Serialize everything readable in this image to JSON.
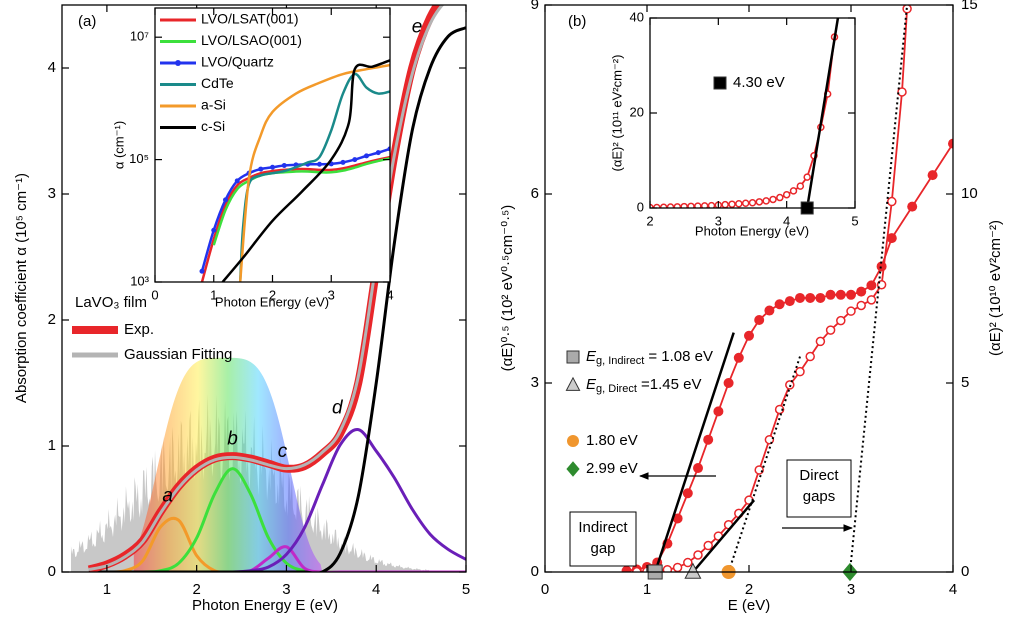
{
  "chart_data": [
    {
      "type": "line",
      "label": "(a)",
      "xlabel": "Photon Energy E  (eV)",
      "ylabel": "Absorption coefficient α  (10⁵ cm⁻¹)",
      "xlim": [
        0.5,
        5
      ],
      "ylim": [
        0,
        4.5
      ],
      "xticks": [
        1,
        2,
        3,
        4,
        5
      ],
      "yticks": [
        0,
        1,
        2,
        3,
        4
      ],
      "legend_title": "LaVO₃ film",
      "x": [
        0.8,
        1.0,
        1.2,
        1.4,
        1.6,
        1.8,
        2.0,
        2.2,
        2.4,
        2.6,
        2.8,
        3.0,
        3.2,
        3.4,
        3.6,
        3.8,
        4.0,
        4.2,
        4.4,
        4.6,
        4.8,
        5.0
      ],
      "series": [
        {
          "name": "Exp.",
          "color": "#e8262a",
          "values": [
            0.02,
            0.06,
            0.13,
            0.25,
            0.48,
            0.68,
            0.82,
            0.9,
            0.92,
            0.9,
            0.86,
            0.82,
            0.84,
            0.94,
            1.1,
            1.5,
            2.4,
            3.3,
            4.0,
            4.4,
            4.6,
            4.7
          ]
        },
        {
          "name": "Gaussian Fitting",
          "color": "#b4b4b4",
          "values": [
            0.02,
            0.05,
            0.12,
            0.24,
            0.47,
            0.67,
            0.81,
            0.89,
            0.91,
            0.89,
            0.85,
            0.82,
            0.85,
            0.95,
            1.12,
            1.55,
            2.45,
            3.3,
            3.95,
            4.35,
            4.55,
            4.65
          ]
        }
      ],
      "peaks": [
        {
          "name": "a",
          "color": "#f39a2a",
          "values": [
            0,
            0,
            0.01,
            0.09,
            0.36,
            0.41,
            0.13,
            0.01,
            0,
            0,
            0,
            0,
            0,
            0,
            0,
            0,
            0,
            0,
            0,
            0,
            0,
            0
          ]
        },
        {
          "name": "b",
          "color": "#3ce03c",
          "values": [
            0,
            0,
            0,
            0,
            0.01,
            0.07,
            0.27,
            0.62,
            0.82,
            0.62,
            0.27,
            0.07,
            0.01,
            0,
            0,
            0,
            0,
            0,
            0,
            0,
            0,
            0
          ]
        },
        {
          "name": "c",
          "color": "#c02ac8",
          "values": [
            0,
            0,
            0,
            0,
            0,
            0,
            0,
            0,
            0,
            0.01,
            0.11,
            0.2,
            0.03,
            0,
            0,
            0,
            0,
            0,
            0,
            0,
            0,
            0
          ]
        },
        {
          "name": "d",
          "color": "#6a1fb8",
          "values": [
            0,
            0,
            0,
            0,
            0,
            0,
            0,
            0,
            0,
            0.01,
            0.04,
            0.14,
            0.35,
            0.69,
            1.01,
            1.13,
            0.96,
            0.75,
            0.5,
            0.3,
            0.18,
            0.1
          ]
        },
        {
          "name": "e",
          "color": "#000000",
          "values": [
            0,
            0,
            0,
            0,
            0,
            0,
            0,
            0,
            0,
            0,
            0,
            0,
            0,
            0,
            0.15,
            0.6,
            1.5,
            2.6,
            3.5,
            4.0,
            4.25,
            4.32
          ]
        }
      ]
    },
    {
      "type": "line",
      "inset": true,
      "xlabel": "Photon Energy  (eV)",
      "ylabel": "α  (cm⁻¹)",
      "log_y": true,
      "xlim": [
        0,
        4
      ],
      "ylim": [
        1000,
        30000000
      ],
      "xticks": [
        0,
        1,
        2,
        3,
        4
      ],
      "yticks": [
        {
          "value": 1000,
          "label": "10³"
        },
        {
          "value": 100000,
          "label": "10⁵"
        },
        {
          "value": 10000000,
          "label": "10⁷"
        }
      ],
      "series": [
        {
          "name": "LVO/LSAT(001)",
          "color": "#e8262a",
          "x": [
            0.8,
            1.0,
            1.2,
            1.4,
            1.6,
            1.8,
            2.0,
            2.2,
            2.4,
            2.6,
            2.8,
            3.0,
            3.2,
            3.4,
            3.6,
            3.8,
            4.0
          ],
          "values": [
            1000,
            5000,
            18000,
            38000,
            50000,
            60000,
            65000,
            68000,
            70000,
            70000,
            68000,
            68000,
            72000,
            80000,
            90000,
            100000,
            110000
          ]
        },
        {
          "name": "LVO/LSAO(001)",
          "color": "#3ce03c",
          "x": [
            0.8,
            1.0,
            1.2,
            1.4,
            1.6,
            1.8,
            2.0,
            2.2,
            2.4,
            2.6,
            2.8,
            3.0,
            3.2,
            3.4,
            3.6,
            3.8,
            4.0
          ],
          "values": [
            null,
            4000,
            15000,
            33000,
            45000,
            55000,
            60000,
            62000,
            64000,
            64000,
            62000,
            62000,
            66000,
            74000,
            85000,
            95000,
            105000
          ]
        },
        {
          "name": "LVO/Quartz",
          "color": "#2233ee",
          "marker": "circle",
          "x": [
            0.8,
            1.0,
            1.2,
            1.4,
            1.6,
            1.8,
            2.0,
            2.2,
            2.4,
            2.6,
            2.8,
            3.0,
            3.2,
            3.4,
            3.6,
            3.8,
            4.0
          ],
          "values": [
            1500,
            7000,
            22000,
            45000,
            60000,
            70000,
            75000,
            80000,
            82000,
            84000,
            84000,
            85000,
            90000,
            100000,
            115000,
            130000,
            150000
          ]
        },
        {
          "name": "CdTe",
          "color": "#1a8a8a",
          "x": [
            1.45,
            1.5,
            1.6,
            1.8,
            2.0,
            2.2,
            2.4,
            2.6,
            2.8,
            3.0,
            3.2,
            3.4,
            3.6,
            3.8,
            4.0
          ],
          "values": [
            1000,
            8000,
            40000,
            55000,
            60000,
            65000,
            75000,
            90000,
            110000,
            300000,
            1200000,
            2500000,
            1500000,
            1200000,
            1300000
          ]
        },
        {
          "name": "a-Si",
          "color": "#f39a2a",
          "x": [
            1.45,
            1.6,
            1.8,
            2.0,
            2.4,
            2.8,
            3.2,
            3.6,
            4.0
          ],
          "values": [
            1000,
            50000,
            250000,
            600000,
            1200000,
            1800000,
            2500000,
            3000000,
            3500000
          ]
        },
        {
          "name": "c-Si",
          "color": "#000000",
          "x": [
            1.15,
            1.5,
            2.0,
            2.5,
            3.0,
            3.3,
            3.4,
            3.7,
            4.0
          ],
          "values": [
            1000,
            2500,
            10000,
            30000,
            100000,
            400000,
            3000000,
            3300000,
            4200000
          ]
        }
      ]
    },
    {
      "type": "line",
      "label": "(b)",
      "xlabel": "E  (eV)",
      "ylabel": "(αE)⁰·⁵  (10² eV⁰·⁵cm⁻⁰·⁵)",
      "y2label": "(αE)²  (10¹⁰ eV²cm⁻²)",
      "xlim": [
        0,
        4
      ],
      "ylim": [
        0,
        9
      ],
      "y2lim": [
        0,
        15
      ],
      "xticks": [
        0,
        1,
        2,
        3,
        4
      ],
      "yticks": [
        0,
        3,
        6,
        9
      ],
      "y2ticks": [
        0,
        5,
        10,
        15
      ],
      "series": [
        {
          "color": "#e8262a",
          "marker": "circle",
          "x": [
            0.8,
            0.9,
            1.0,
            1.1,
            1.2,
            1.3,
            1.4,
            1.5,
            1.6,
            1.7,
            1.8,
            1.9,
            2.0,
            2.1,
            2.2,
            2.3,
            2.4,
            2.5,
            2.6,
            2.7,
            2.8,
            2.9,
            3.0,
            3.1,
            3.2,
            3.3,
            3.4,
            3.6,
            3.8,
            4.0
          ],
          "values": [
            0.02,
            0.04,
            0.08,
            0.15,
            0.45,
            0.85,
            1.25,
            1.65,
            2.1,
            2.55,
            3.0,
            3.4,
            3.75,
            4.0,
            4.15,
            4.25,
            4.3,
            4.35,
            4.35,
            4.35,
            4.4,
            4.4,
            4.4,
            4.45,
            4.55,
            4.85,
            5.3,
            5.8,
            6.3,
            6.8
          ]
        },
        {
          "color": "#e8262a",
          "marker": "open-circle",
          "axis": "y2",
          "x": [
            0.9,
            1.0,
            1.1,
            1.2,
            1.3,
            1.4,
            1.5,
            1.6,
            1.7,
            1.8,
            1.9,
            2.0,
            2.1,
            2.2,
            2.3,
            2.4,
            2.5,
            2.6,
            2.7,
            2.8,
            2.9,
            3.0,
            3.1,
            3.2,
            3.3,
            3.4,
            3.5,
            3.55
          ],
          "values": [
            0.01,
            0.02,
            0.03,
            0.06,
            0.12,
            0.25,
            0.45,
            0.7,
            0.95,
            1.25,
            1.55,
            1.9,
            2.7,
            3.5,
            4.3,
            4.95,
            5.3,
            5.7,
            6.1,
            6.4,
            6.65,
            6.9,
            7.05,
            7.2,
            7.6,
            9.8,
            12.7,
            14.9
          ]
        }
      ],
      "fits": [
        {
          "x": [
            1.08,
            1.85
          ],
          "values": [
            0,
            3.8
          ],
          "dashed": false
        },
        {
          "x": [
            1.45,
            2.05
          ],
          "values": [
            0,
            1.9
          ],
          "axis": "y2",
          "dashed": false
        },
        {
          "x": [
            1.8,
            2.5
          ],
          "values": [
            0,
            5.7
          ],
          "axis": "y2",
          "dashed": true
        },
        {
          "x": [
            2.99,
            3.55
          ],
          "values": [
            0,
            15
          ],
          "axis": "y2",
          "dashed": true
        }
      ],
      "gaps": [
        {
          "symbol": "E",
          "subscript": "g, Indirect",
          "text": "= 1.08 eV",
          "x": 1.08,
          "marker": "square",
          "color": "#aaaaaa"
        },
        {
          "symbol": "E",
          "subscript": "g, Direct",
          "text": "=1.45 eV",
          "x": 1.45,
          "marker": "triangle",
          "color": "#cccccc"
        },
        {
          "text": "1.80 eV",
          "x": 1.8,
          "marker": "circle",
          "color": "#f0962e"
        },
        {
          "text": "2.99 eV",
          "x": 2.99,
          "marker": "diamond",
          "color": "#2e8b2e"
        }
      ],
      "annotations": [
        {
          "lines": [
            "Indirect",
            "gap"
          ]
        },
        {
          "lines": [
            "Direct",
            "gaps"
          ]
        }
      ]
    },
    {
      "type": "line",
      "inset": true,
      "xlabel": "Photon Energy  (eV)",
      "ylabel": "(αE)²  (10¹¹ eV²cm⁻²)",
      "xlim": [
        2,
        5
      ],
      "ylim": [
        0,
        40
      ],
      "xticks": [
        2,
        3,
        4,
        5
      ],
      "yticks": [
        0,
        20,
        40
      ],
      "series": [
        {
          "color": "#e8262a",
          "marker": "open-circle",
          "x": [
            2.0,
            2.1,
            2.2,
            2.3,
            2.4,
            2.5,
            2.6,
            2.7,
            2.8,
            2.9,
            3.0,
            3.1,
            3.2,
            3.3,
            3.4,
            3.5,
            3.6,
            3.7,
            3.8,
            3.9,
            4.0,
            4.1,
            4.2,
            4.3,
            4.4,
            4.5,
            4.6,
            4.7
          ],
          "values": [
            0.1,
            0.1,
            0.15,
            0.2,
            0.25,
            0.3,
            0.35,
            0.4,
            0.45,
            0.5,
            0.6,
            0.7,
            0.8,
            0.9,
            1.0,
            1.1,
            1.3,
            1.5,
            1.8,
            2.2,
            2.8,
            3.6,
            4.6,
            6.5,
            11,
            17,
            24,
            36
          ]
        }
      ],
      "fits": [
        {
          "x": [
            4.3,
            4.75
          ],
          "values": [
            0,
            40
          ],
          "dashed": false
        }
      ],
      "gaps": [
        {
          "text": "4.30 eV",
          "x": 4.3,
          "marker": "square",
          "color": "#000000"
        }
      ]
    }
  ]
}
